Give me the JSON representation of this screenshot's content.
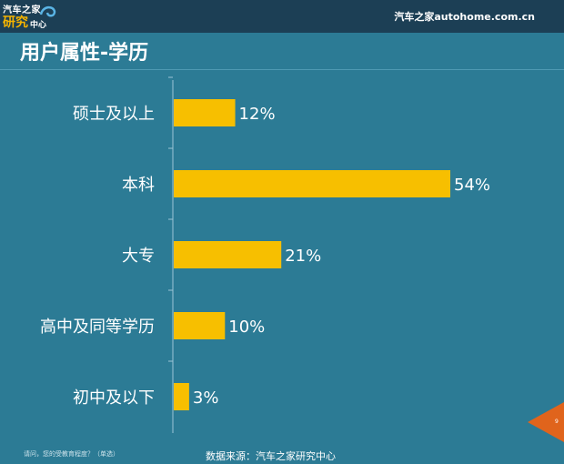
{
  "header": {
    "logo_line1": "汽车之家",
    "logo_line2": "研究",
    "logo_line3": "中心",
    "brand": "汽车之家autohome.com.cn"
  },
  "title": "用户属性-学历",
  "footer": {
    "question": "请问，您的受教育程度？（单选）",
    "source": "数据来源：汽车之家研究中心",
    "page_number": "9"
  },
  "colors": {
    "background": "#2c7b95",
    "bar": "#f7bf00",
    "accent": "#e0641c"
  },
  "chart_data": {
    "type": "bar",
    "orientation": "horizontal",
    "categories": [
      "硕士及以上",
      "本科",
      "大专",
      "高中及同等学历",
      "初中及以下"
    ],
    "values": [
      12,
      54,
      21,
      10,
      3
    ],
    "value_labels": [
      "12%",
      "54%",
      "21%",
      "10%",
      "3%"
    ],
    "unit": "%",
    "xlim": [
      0,
      54
    ],
    "grid": false,
    "legend": "none"
  }
}
